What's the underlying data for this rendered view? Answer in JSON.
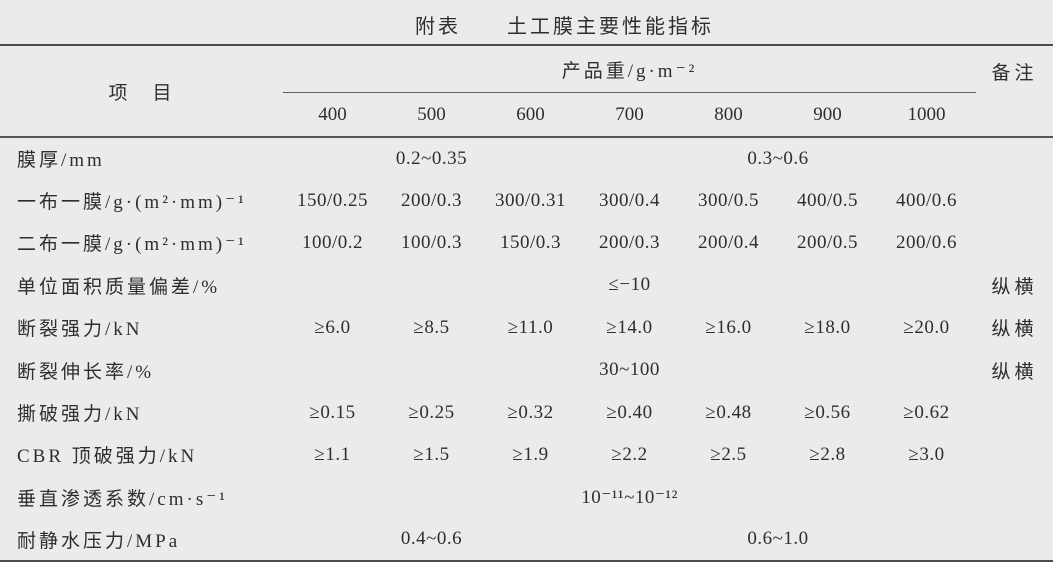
{
  "title": "附表　　土工膜主要性能指标",
  "header": {
    "item_label": "项　目",
    "group_label": "产品重/g·m⁻²",
    "remark_label": "备注",
    "weights": [
      "400",
      "500",
      "600",
      "700",
      "800",
      "900",
      "1000"
    ]
  },
  "rows": [
    {
      "label": "膜厚/mm",
      "left_span": "0.2~0.35",
      "right_span": "0.3~0.6",
      "remark": ""
    },
    {
      "label": "一布一膜/g·(m²·mm)⁻¹",
      "values": [
        "150/0.25",
        "200/0.3",
        "300/0.31",
        "300/0.4",
        "300/0.5",
        "400/0.5",
        "400/0.6"
      ],
      "remark": ""
    },
    {
      "label": "二布一膜/g·(m²·mm)⁻¹",
      "values": [
        "100/0.2",
        "100/0.3",
        "150/0.3",
        "200/0.3",
        "200/0.4",
        "200/0.5",
        "200/0.6"
      ],
      "remark": ""
    },
    {
      "label": "单位面积质量偏差/%",
      "full_span": "≤−10",
      "remark": "纵横"
    },
    {
      "label": "断裂强力/kN",
      "values": [
        "≥6.0",
        "≥8.5",
        "≥11.0",
        "≥14.0",
        "≥16.0",
        "≥18.0",
        "≥20.0"
      ],
      "remark": "纵横"
    },
    {
      "label": "断裂伸长率/%",
      "full_span": "30~100",
      "remark": "纵横"
    },
    {
      "label": "撕破强力/kN",
      "values": [
        "≥0.15",
        "≥0.25",
        "≥0.32",
        "≥0.40",
        "≥0.48",
        "≥0.56",
        "≥0.62"
      ],
      "remark": ""
    },
    {
      "label": "CBR 顶破强力/kN",
      "values": [
        "≥1.1",
        "≥1.5",
        "≥1.9",
        "≥2.2",
        "≥2.5",
        "≥2.8",
        "≥3.0"
      ],
      "remark": ""
    },
    {
      "label": "垂直渗透系数/cm·s⁻¹",
      "full_span": "10⁻¹¹~10⁻¹²",
      "remark": ""
    },
    {
      "label": "耐静水压力/MPa",
      "left_span": "0.4~0.6",
      "right_span": "0.6~1.0",
      "remark": ""
    }
  ]
}
